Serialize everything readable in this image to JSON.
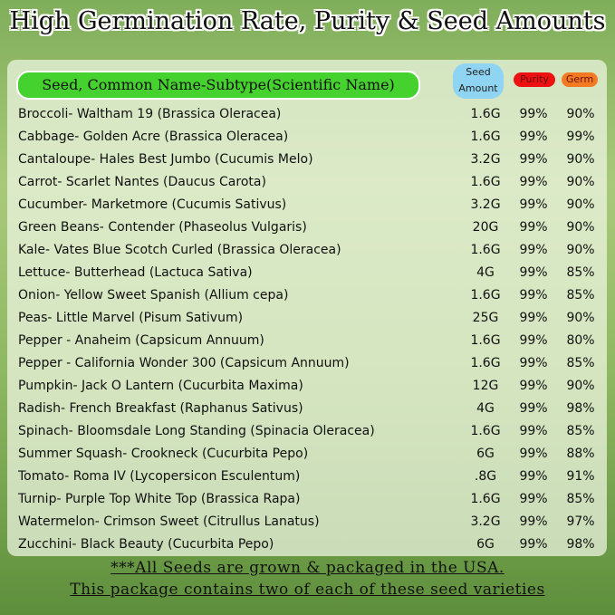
{
  "header": {
    "title": "High Germination Rate, Purity & Seed Amounts"
  },
  "table": {
    "columns": [
      "Seed, Common Name-Subtype(Scientific Name)",
      "Seed Amount",
      "Purity",
      "Germ"
    ],
    "rows": [
      [
        "Broccoli- Waltham 19 (Brassica Oleracea)",
        "1.6G",
        "99%",
        "90%"
      ],
      [
        "Cabbage- Golden Acre (Brassica Oleracea)",
        "1.6G",
        "99%",
        "99%"
      ],
      [
        "Cantaloupe- Hales Best Jumbo (Cucumis Melo)",
        "3.2G",
        "99%",
        "90%"
      ],
      [
        "Carrot- Scarlet Nantes (Daucus Carota)",
        "1.6G",
        "99%",
        "90%"
      ],
      [
        "Cucumber- Marketmore (Cucumis Sativus)",
        "3.2G",
        "99%",
        "90%"
      ],
      [
        "Green Beans- Contender (Phaseolus Vulgaris)",
        "20G",
        "99%",
        "90%"
      ],
      [
        "Kale- Vates Blue Scotch Curled (Brassica Oleracea)",
        "1.6G",
        "99%",
        "90%"
      ],
      [
        "Lettuce- Butterhead (Lactuca Sativa)",
        "4G",
        "99%",
        "85%"
      ],
      [
        "Onion- Yellow Sweet Spanish (Allium cepa)",
        "1.6G",
        "99%",
        "85%"
      ],
      [
        "Peas- Little Marvel (Pisum Sativum)",
        "25G",
        "99%",
        "90%"
      ],
      [
        "Pepper - Anaheim (Capsicum Annuum)",
        "1.6G",
        "99%",
        "80%"
      ],
      [
        "Pepper - California Wonder 300 (Capsicum Annuum)",
        "1.6G",
        "99%",
        "85%"
      ],
      [
        "Pumpkin- Jack O Lantern (Cucurbita Maxima)",
        "12G",
        "99%",
        "90%"
      ],
      [
        "Radish- French Breakfast (Raphanus Sativus)",
        "4G",
        "99%",
        "98%"
      ],
      [
        "Spinach- Bloomsdale Long Standing (Spinacia Oleracea)",
        "1.6G",
        "99%",
        "85%"
      ],
      [
        "Summer Squash- Crookneck (Cucurbita Pepo)",
        "6G",
        "99%",
        "88%"
      ],
      [
        "Tomato- Roma IV (Lycopersicon Esculentum)",
        ".8G",
        "99%",
        "91%"
      ],
      [
        "Turnip- Purple Top White Top (Brassica Rapa)",
        "1.6G",
        "99%",
        "85%"
      ],
      [
        "Watermelon- Crimson Sweet (Citrullus Lanatus)",
        "3.2G",
        "99%",
        "97%"
      ],
      [
        "Zucchini- Black Beauty (Cucurbita Pepo)",
        "6G",
        "99%",
        "98%"
      ]
    ]
  },
  "footer": {
    "lines": [
      "***All Seeds are grown & packaged in the USA.",
      "This package contains two of each of these seed varieties"
    ]
  }
}
